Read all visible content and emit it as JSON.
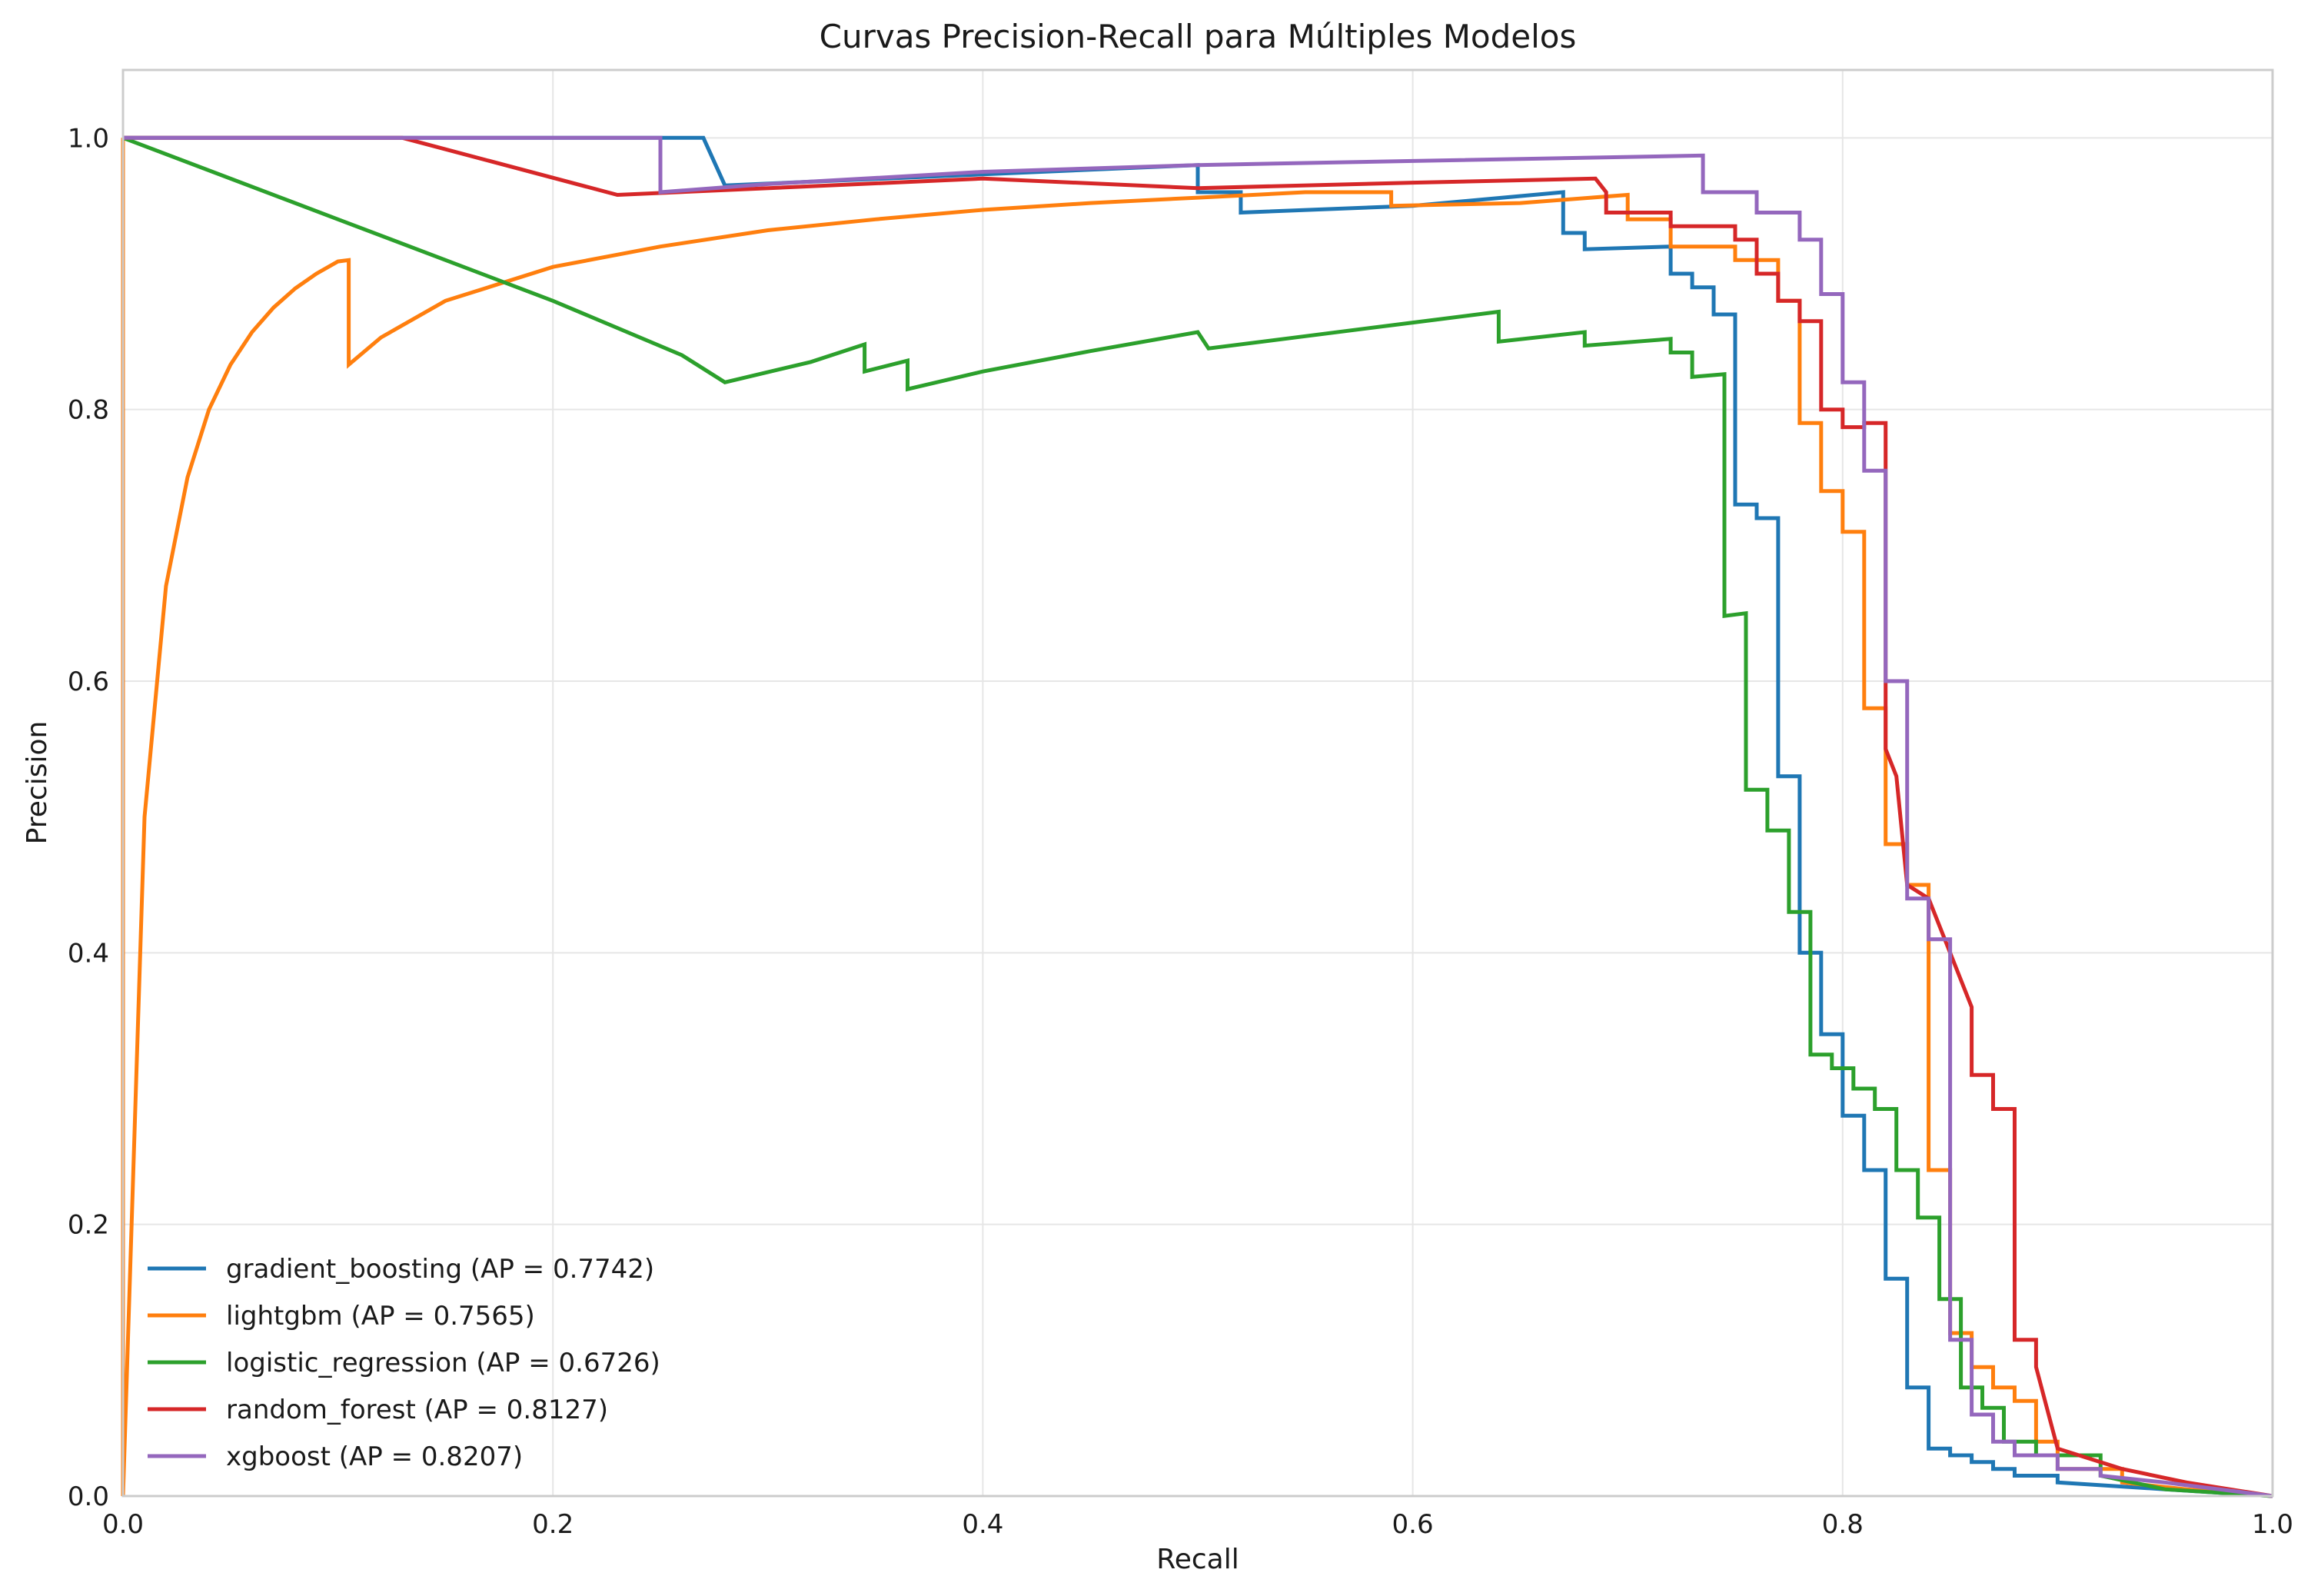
{
  "chart_data": {
    "type": "line",
    "title": "Curvas Precision-Recall para Múltiples Modelos",
    "xlabel": "Recall",
    "ylabel": "Precision",
    "xlim": [
      0.0,
      1.0
    ],
    "ylim": [
      0.0,
      1.05
    ],
    "xticks": [
      0.0,
      0.2,
      0.4,
      0.6,
      0.8,
      1.0
    ],
    "yticks": [
      0.0,
      0.2,
      0.4,
      0.6,
      0.8,
      1.0
    ],
    "xtick_labels": [
      "0.0",
      "0.2",
      "0.4",
      "0.6",
      "0.8",
      "1.0"
    ],
    "ytick_labels": [
      "0.0",
      "0.2",
      "0.4",
      "0.6",
      "0.8",
      "1.0"
    ],
    "grid": true,
    "legend_position": "lower-left",
    "series": [
      {
        "name": "gradient_boosting (AP = 0.7742)",
        "color": "#1f77b4",
        "x": [
          0.0,
          0.25,
          0.27,
          0.28,
          0.5,
          0.5,
          0.52,
          0.52,
          0.6,
          0.67,
          0.67,
          0.68,
          0.68,
          0.72,
          0.72,
          0.73,
          0.73,
          0.74,
          0.74,
          0.75,
          0.75,
          0.76,
          0.76,
          0.77,
          0.77,
          0.78,
          0.78,
          0.79,
          0.79,
          0.8,
          0.8,
          0.81,
          0.81,
          0.82,
          0.82,
          0.83,
          0.83,
          0.84,
          0.84,
          0.85,
          0.85,
          0.86,
          0.86,
          0.87,
          0.87,
          0.88,
          0.88,
          0.9,
          0.9,
          0.95,
          1.0
        ],
        "y": [
          1.0,
          1.0,
          1.0,
          0.965,
          0.98,
          0.96,
          0.96,
          0.945,
          0.95,
          0.96,
          0.93,
          0.93,
          0.918,
          0.92,
          0.9,
          0.9,
          0.89,
          0.89,
          0.87,
          0.87,
          0.73,
          0.73,
          0.72,
          0.72,
          0.53,
          0.53,
          0.4,
          0.4,
          0.34,
          0.34,
          0.28,
          0.28,
          0.24,
          0.24,
          0.16,
          0.16,
          0.08,
          0.08,
          0.035,
          0.035,
          0.03,
          0.03,
          0.025,
          0.025,
          0.02,
          0.02,
          0.015,
          0.015,
          0.01,
          0.005,
          0.0
        ]
      },
      {
        "name": "lightgbm (AP = 0.7565)",
        "color": "#ff7f0e",
        "x": [
          0.0,
          0.0,
          0.01,
          0.02,
          0.03,
          0.04,
          0.05,
          0.06,
          0.07,
          0.08,
          0.09,
          0.1,
          0.105,
          0.105,
          0.12,
          0.15,
          0.2,
          0.25,
          0.3,
          0.35,
          0.4,
          0.45,
          0.5,
          0.55,
          0.59,
          0.59,
          0.65,
          0.7,
          0.7,
          0.72,
          0.72,
          0.75,
          0.75,
          0.77,
          0.77,
          0.78,
          0.78,
          0.79,
          0.79,
          0.8,
          0.8,
          0.81,
          0.81,
          0.82,
          0.82,
          0.83,
          0.83,
          0.84,
          0.84,
          0.85,
          0.85,
          0.86,
          0.86,
          0.87,
          0.87,
          0.88,
          0.88,
          0.89,
          0.89,
          0.9,
          0.9,
          0.93,
          0.93,
          0.96,
          1.0
        ],
        "y": [
          1.0,
          0.0,
          0.5,
          0.67,
          0.75,
          0.8,
          0.833,
          0.857,
          0.875,
          0.889,
          0.9,
          0.909,
          0.91,
          0.833,
          0.853,
          0.88,
          0.905,
          0.92,
          0.932,
          0.94,
          0.947,
          0.952,
          0.956,
          0.96,
          0.96,
          0.95,
          0.952,
          0.958,
          0.94,
          0.94,
          0.92,
          0.92,
          0.91,
          0.91,
          0.88,
          0.88,
          0.79,
          0.79,
          0.74,
          0.74,
          0.71,
          0.71,
          0.58,
          0.58,
          0.48,
          0.48,
          0.45,
          0.45,
          0.24,
          0.24,
          0.12,
          0.12,
          0.095,
          0.095,
          0.08,
          0.08,
          0.07,
          0.07,
          0.04,
          0.04,
          0.02,
          0.02,
          0.01,
          0.005,
          0.0
        ]
      },
      {
        "name": "logistic_regression (AP = 0.6726)",
        "color": "#2ca02c",
        "x": [
          0.0,
          0.1,
          0.2,
          0.26,
          0.28,
          0.32,
          0.345,
          0.345,
          0.365,
          0.365,
          0.4,
          0.45,
          0.5,
          0.505,
          0.505,
          0.55,
          0.6,
          0.64,
          0.64,
          0.68,
          0.68,
          0.72,
          0.72,
          0.73,
          0.73,
          0.745,
          0.745,
          0.755,
          0.755,
          0.765,
          0.765,
          0.775,
          0.775,
          0.785,
          0.785,
          0.795,
          0.795,
          0.805,
          0.805,
          0.815,
          0.815,
          0.825,
          0.825,
          0.835,
          0.835,
          0.845,
          0.845,
          0.855,
          0.855,
          0.865,
          0.865,
          0.875,
          0.875,
          0.89,
          0.89,
          0.92,
          0.92,
          0.95,
          1.0
        ],
        "y": [
          1.0,
          0.94,
          0.88,
          0.84,
          0.82,
          0.835,
          0.848,
          0.828,
          0.836,
          0.815,
          0.828,
          0.843,
          0.857,
          0.845,
          0.845,
          0.854,
          0.864,
          0.872,
          0.85,
          0.857,
          0.847,
          0.852,
          0.842,
          0.842,
          0.824,
          0.826,
          0.648,
          0.65,
          0.52,
          0.52,
          0.49,
          0.49,
          0.43,
          0.43,
          0.325,
          0.325,
          0.315,
          0.315,
          0.3,
          0.3,
          0.285,
          0.285,
          0.24,
          0.24,
          0.205,
          0.205,
          0.145,
          0.145,
          0.08,
          0.08,
          0.065,
          0.065,
          0.04,
          0.04,
          0.03,
          0.03,
          0.015,
          0.005,
          0.0
        ]
      },
      {
        "name": "random_forest (AP = 0.8127)",
        "color": "#d62728",
        "x": [
          0.0,
          0.13,
          0.23,
          0.4,
          0.5,
          0.6,
          0.685,
          0.69,
          0.69,
          0.71,
          0.71,
          0.72,
          0.72,
          0.73,
          0.73,
          0.75,
          0.75,
          0.76,
          0.76,
          0.77,
          0.77,
          0.78,
          0.78,
          0.79,
          0.79,
          0.8,
          0.8,
          0.81,
          0.81,
          0.82,
          0.82,
          0.825,
          0.83,
          0.84,
          0.85,
          0.86,
          0.86,
          0.87,
          0.87,
          0.88,
          0.88,
          0.89,
          0.89,
          0.9,
          0.93,
          0.96,
          1.0
        ],
        "y": [
          1.0,
          1.0,
          0.958,
          0.97,
          0.963,
          0.967,
          0.97,
          0.96,
          0.945,
          0.945,
          0.945,
          0.945,
          0.935,
          0.935,
          0.935,
          0.935,
          0.925,
          0.925,
          0.9,
          0.9,
          0.88,
          0.88,
          0.865,
          0.865,
          0.8,
          0.8,
          0.787,
          0.787,
          0.79,
          0.79,
          0.55,
          0.53,
          0.45,
          0.44,
          0.4,
          0.36,
          0.31,
          0.31,
          0.285,
          0.285,
          0.115,
          0.115,
          0.095,
          0.035,
          0.02,
          0.01,
          0.0
        ]
      },
      {
        "name": "xgboost (AP = 0.8207)",
        "color": "#9467bd",
        "x": [
          0.0,
          0.25,
          0.25,
          0.3,
          0.4,
          0.5,
          0.6,
          0.735,
          0.735,
          0.76,
          0.76,
          0.78,
          0.78,
          0.79,
          0.79,
          0.8,
          0.8,
          0.81,
          0.81,
          0.82,
          0.82,
          0.83,
          0.83,
          0.84,
          0.84,
          0.85,
          0.85,
          0.86,
          0.86,
          0.87,
          0.87,
          0.88,
          0.88,
          0.9,
          0.9,
          0.92,
          0.92,
          0.95,
          1.0
        ],
        "y": [
          1.0,
          1.0,
          0.96,
          0.966,
          0.975,
          0.98,
          0.983,
          0.987,
          0.96,
          0.96,
          0.945,
          0.945,
          0.925,
          0.925,
          0.885,
          0.885,
          0.82,
          0.82,
          0.755,
          0.755,
          0.6,
          0.6,
          0.44,
          0.44,
          0.41,
          0.41,
          0.115,
          0.115,
          0.06,
          0.06,
          0.04,
          0.04,
          0.03,
          0.03,
          0.02,
          0.02,
          0.015,
          0.01,
          0.0
        ]
      }
    ]
  }
}
